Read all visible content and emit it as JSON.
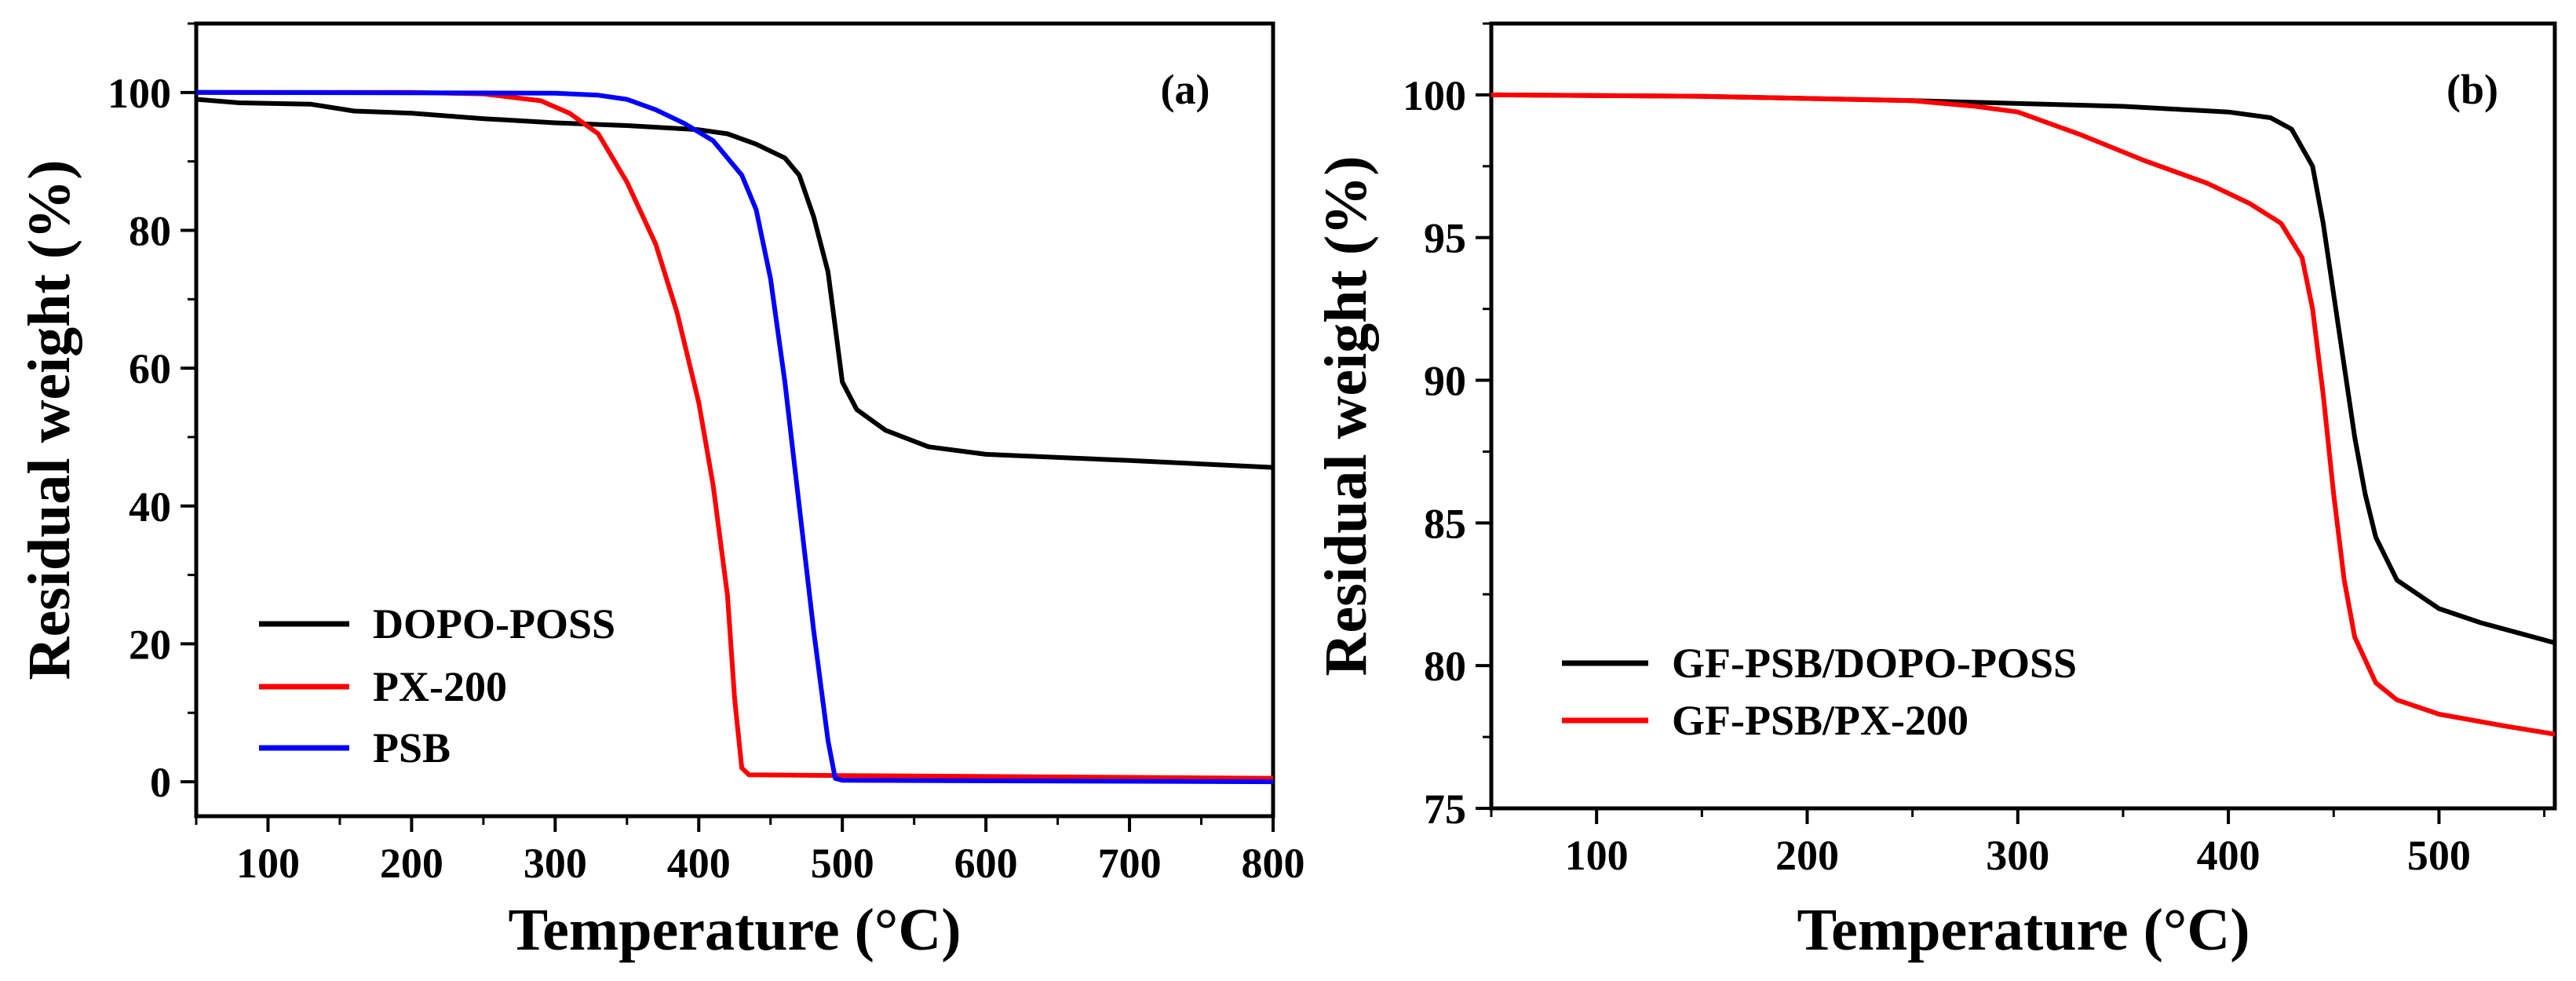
{
  "chart_data": [
    {
      "type": "line",
      "panel_label": "(a)",
      "xlabel": "Temperature (°C)",
      "ylabel": "Residual weight (%)",
      "xlim": [
        50,
        800
      ],
      "ylim": [
        -5,
        110
      ],
      "xticks": [
        100,
        200,
        300,
        400,
        500,
        600,
        700,
        800
      ],
      "yticks": [
        0,
        20,
        40,
        60,
        80,
        100
      ],
      "xtick_labels": [
        "100",
        "200",
        "300",
        "400",
        "500",
        "600",
        "700",
        "800"
      ],
      "ytick_labels": [
        "0",
        "20",
        "40",
        "60",
        "80",
        "100"
      ],
      "legend_position": "bottom-left",
      "series": [
        {
          "name": "DOPO-POSS",
          "color": "#000000",
          "points": [
            [
              50,
              99
            ],
            [
              80,
              98.5
            ],
            [
              130,
              98.3
            ],
            [
              160,
              97.3
            ],
            [
              200,
              97
            ],
            [
              250,
              96.2
            ],
            [
              300,
              95.6
            ],
            [
              350,
              95.2
            ],
            [
              400,
              94.6
            ],
            [
              420,
              94
            ],
            [
              440,
              92.5
            ],
            [
              460,
              90.5
            ],
            [
              470,
              88
            ],
            [
              480,
              82
            ],
            [
              490,
              74
            ],
            [
              495,
              66
            ],
            [
              500,
              58
            ],
            [
              510,
              54
            ],
            [
              530,
              51
            ],
            [
              560,
              48.6
            ],
            [
              600,
              47.5
            ],
            [
              700,
              46.6
            ],
            [
              800,
              45.6
            ]
          ]
        },
        {
          "name": "PX-200",
          "color": "#ff0000",
          "points": [
            [
              50,
              100
            ],
            [
              200,
              100
            ],
            [
              250,
              99.8
            ],
            [
              290,
              98.8
            ],
            [
              310,
              97
            ],
            [
              330,
              94
            ],
            [
              350,
              87
            ],
            [
              370,
              78
            ],
            [
              385,
              68
            ],
            [
              400,
              55
            ],
            [
              410,
              43
            ],
            [
              420,
              27
            ],
            [
              425,
              12
            ],
            [
              430,
              2
            ],
            [
              435,
              1
            ],
            [
              500,
              0.9
            ],
            [
              800,
              0.5
            ]
          ]
        },
        {
          "name": "PSB",
          "color": "#0000ff",
          "points": [
            [
              50,
              100
            ],
            [
              300,
              99.9
            ],
            [
              330,
              99.6
            ],
            [
              350,
              99
            ],
            [
              370,
              97.5
            ],
            [
              390,
              95.5
            ],
            [
              410,
              93
            ],
            [
              430,
              88
            ],
            [
              440,
              83
            ],
            [
              450,
              73
            ],
            [
              460,
              58
            ],
            [
              470,
              40
            ],
            [
              480,
              22
            ],
            [
              490,
              6
            ],
            [
              495,
              0.5
            ],
            [
              500,
              0.2
            ],
            [
              800,
              0
            ]
          ]
        }
      ]
    },
    {
      "type": "line",
      "panel_label": "(b)",
      "xlabel": "Temperature (°C)",
      "ylabel": "Residual weight (%)",
      "xlim": [
        50,
        555
      ],
      "ylim": [
        75,
        102.5
      ],
      "xticks": [
        100,
        200,
        300,
        400,
        500
      ],
      "yticks": [
        75,
        80,
        85,
        90,
        95,
        100
      ],
      "xtick_labels": [
        "100",
        "200",
        "300",
        "400",
        "500"
      ],
      "ytick_labels": [
        "75",
        "80",
        "85",
        "90",
        "95",
        "100"
      ],
      "legend_position": "bottom-left",
      "series": [
        {
          "name": "GF-PSB/DOPO-POSS",
          "color": "#000000",
          "points": [
            [
              50,
              100
            ],
            [
              150,
              99.95
            ],
            [
              250,
              99.8
            ],
            [
              350,
              99.6
            ],
            [
              400,
              99.4
            ],
            [
              420,
              99.2
            ],
            [
              430,
              98.8
            ],
            [
              440,
              97.5
            ],
            [
              445,
              95.5
            ],
            [
              450,
              93
            ],
            [
              455,
              90.5
            ],
            [
              460,
              88
            ],
            [
              465,
              86
            ],
            [
              470,
              84.5
            ],
            [
              480,
              83
            ],
            [
              500,
              82
            ],
            [
              520,
              81.5
            ],
            [
              540,
              81.1
            ],
            [
              555,
              80.8
            ]
          ]
        },
        {
          "name": "GF-PSB/PX-200",
          "color": "#ff0000",
          "points": [
            [
              50,
              100
            ],
            [
              150,
              99.95
            ],
            [
              250,
              99.8
            ],
            [
              280,
              99.6
            ],
            [
              300,
              99.4
            ],
            [
              330,
              98.6
            ],
            [
              360,
              97.7
            ],
            [
              390,
              96.9
            ],
            [
              410,
              96.2
            ],
            [
              425,
              95.5
            ],
            [
              435,
              94.3
            ],
            [
              440,
              92.5
            ],
            [
              445,
              89.5
            ],
            [
              450,
              86
            ],
            [
              455,
              83
            ],
            [
              460,
              81
            ],
            [
              470,
              79.4
            ],
            [
              480,
              78.8
            ],
            [
              500,
              78.3
            ],
            [
              530,
              77.9
            ],
            [
              555,
              77.6
            ]
          ]
        }
      ]
    }
  ]
}
